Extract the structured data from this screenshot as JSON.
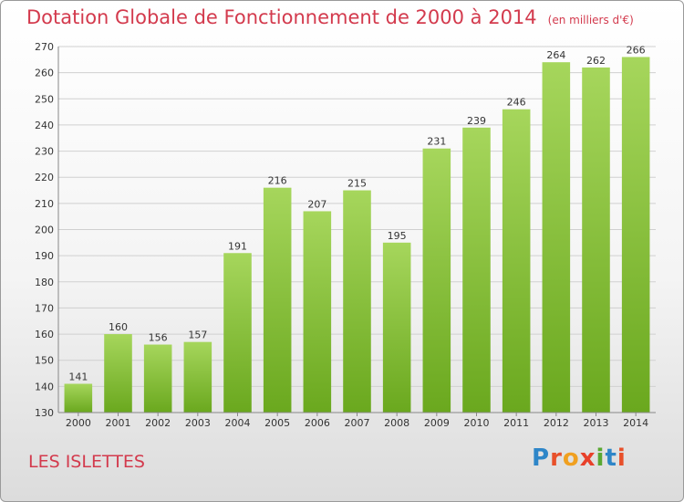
{
  "title": "Dotation Globale de Fonctionnement de 2000 à 2014",
  "subtitle": "(en milliers d'€)",
  "place": "LES ISLETTES",
  "logo": {
    "text": "Proxiti",
    "letter_colors": [
      "#2e86c8",
      "#e8502a",
      "#f0a020",
      "#e8402a",
      "#5aa832",
      "#2e86c8",
      "#e8502a"
    ]
  },
  "colors": {
    "title": "#d33a4d",
    "bar_light": "#a6d65c",
    "bar_dark": "#6aa81e",
    "grid": "#d0d0d0"
  },
  "chart_data": {
    "type": "bar",
    "categories": [
      "2000",
      "2001",
      "2002",
      "2003",
      "2004",
      "2005",
      "2006",
      "2007",
      "2008",
      "2009",
      "2010",
      "2011",
      "2012",
      "2013",
      "2014"
    ],
    "values": [
      141,
      160,
      156,
      157,
      191,
      216,
      207,
      215,
      195,
      231,
      239,
      246,
      264,
      262,
      266
    ],
    "ylim": [
      130,
      270
    ],
    "yticks": [
      130,
      140,
      150,
      160,
      170,
      180,
      190,
      200,
      210,
      220,
      230,
      240,
      250,
      260,
      270
    ],
    "grid": true,
    "xlabel": "",
    "ylabel": ""
  }
}
